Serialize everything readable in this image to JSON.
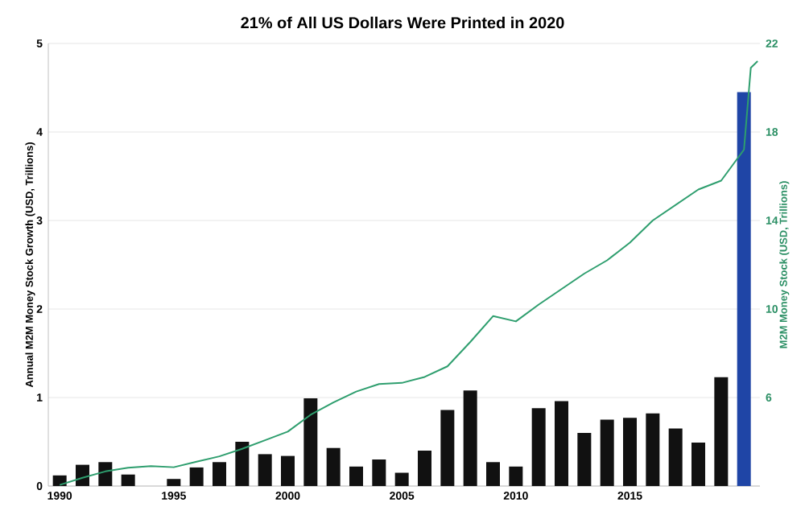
{
  "chart_data": {
    "type": "bar",
    "title": "21% of All US Dollars Were Printed in 2020",
    "ylabel": "Annual M2M Money Stock Growth (USD, Trillions)",
    "y2label": "M2M Money Stock (USD, Trillions)",
    "xlim": [
      1989.5,
      2020.7
    ],
    "xticks": [
      1990,
      1995,
      2000,
      2005,
      2010,
      2015
    ],
    "ylim": [
      0,
      5
    ],
    "yticks": [
      0,
      1,
      2,
      3,
      4,
      5
    ],
    "y2lim": [
      2,
      22
    ],
    "y2ticks": [
      6,
      10,
      14,
      18,
      22
    ],
    "grid": "y",
    "series": [
      {
        "x": [
          1990,
          1991,
          1992,
          1993,
          1994,
          1995,
          1996,
          1997,
          1998,
          1999,
          2000,
          2001,
          2002,
          2003,
          2004,
          2005,
          2006,
          2007,
          2008,
          2009,
          2010,
          2011,
          2012,
          2013,
          2014,
          2015,
          2016,
          2017,
          2018,
          2019,
          2020
        ],
        "values": [
          0.12,
          0.24,
          0.27,
          0.13,
          0,
          0.08,
          0.21,
          0.27,
          0.5,
          0.36,
          0.34,
          0.99,
          0.43,
          0.22,
          0.3,
          0.15,
          0.4,
          0.86,
          1.08,
          0.27,
          0.22,
          0.88,
          0.96,
          0.6,
          0.75,
          0.77,
          0.82,
          0.65,
          0.49,
          1.23,
          4.45
        ],
        "colors": [
          "#111111",
          "#111111",
          "#111111",
          "#111111",
          "#111111",
          "#111111",
          "#111111",
          "#111111",
          "#111111",
          "#111111",
          "#111111",
          "#111111",
          "#111111",
          "#111111",
          "#111111",
          "#111111",
          "#111111",
          "#111111",
          "#111111",
          "#111111",
          "#111111",
          "#111111",
          "#111111",
          "#111111",
          "#111111",
          "#111111",
          "#111111",
          "#111111",
          "#111111",
          "#111111",
          "#1f45a6"
        ]
      },
      {
        "type": "line",
        "axis": "y2",
        "color": "#2e9e6e",
        "marker": "none",
        "x": [
          1990,
          1991,
          1992,
          1993,
          1994,
          1995,
          1996,
          1997,
          1998,
          1999,
          2000,
          2001,
          2002,
          2003,
          2004,
          2005,
          2006,
          2007,
          2008,
          2009,
          2010,
          2011,
          2012,
          2013,
          2014,
          2015,
          2016,
          2017,
          2018,
          2019,
          2020,
          2020.3,
          2020.6
        ],
        "values": [
          2.05,
          2.37,
          2.66,
          2.83,
          2.9,
          2.85,
          3.1,
          3.34,
          3.68,
          4.07,
          4.46,
          5.22,
          5.78,
          6.27,
          6.61,
          6.66,
          6.93,
          7.41,
          8.51,
          9.68,
          9.44,
          10.2,
          10.9,
          11.6,
          12.2,
          13.0,
          14.0,
          14.7,
          15.4,
          15.8,
          17.2,
          20.9,
          21.2
        ]
      }
    ]
  }
}
